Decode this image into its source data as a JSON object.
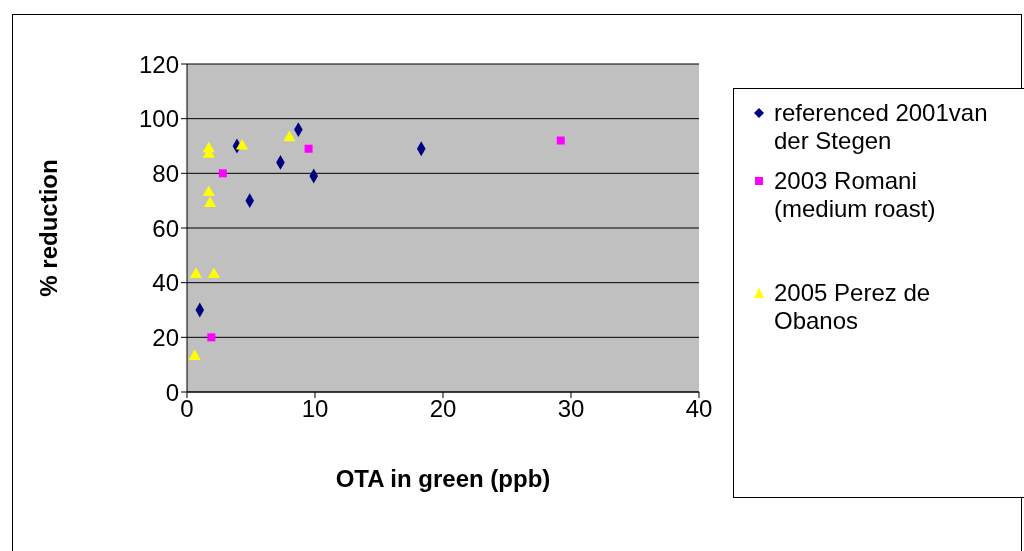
{
  "chart_data": {
    "type": "scatter",
    "xlabel": "OTA in green (ppb)",
    "ylabel": "% reduction",
    "xlim": [
      0,
      40
    ],
    "xticks": [
      0,
      10,
      20,
      30,
      40
    ],
    "ylim": [
      0,
      120
    ],
    "yticks": [
      0,
      20,
      40,
      60,
      80,
      100,
      120
    ],
    "grid": "y",
    "legend": "right",
    "series": [
      {
        "name": "referenced 2001van der Stegen",
        "color": "#000080",
        "marker": "diamond",
        "x": [
          1.0,
          3.9,
          4.9,
          7.3,
          8.7,
          9.9,
          18.3
        ],
        "values": [
          30,
          90,
          70,
          84,
          96,
          79,
          89
        ]
      },
      {
        "name": "2003 Romani (medium roast)",
        "color": "#ff00ff",
        "marker": "square",
        "x": [
          1.9,
          2.8,
          9.5,
          29.2
        ],
        "values": [
          20,
          80,
          89,
          92
        ]
      },
      {
        "name": "2005 Perez de Obanos",
        "color": "#ffff00",
        "marker": "triangle",
        "x": [
          0.6,
          0.7,
          2.1,
          1.7,
          1.8,
          1.7,
          1.7,
          4.3,
          8.0
        ],
        "values": [
          13,
          43,
          43,
          73,
          69,
          89,
          87,
          90,
          93
        ]
      }
    ]
  }
}
